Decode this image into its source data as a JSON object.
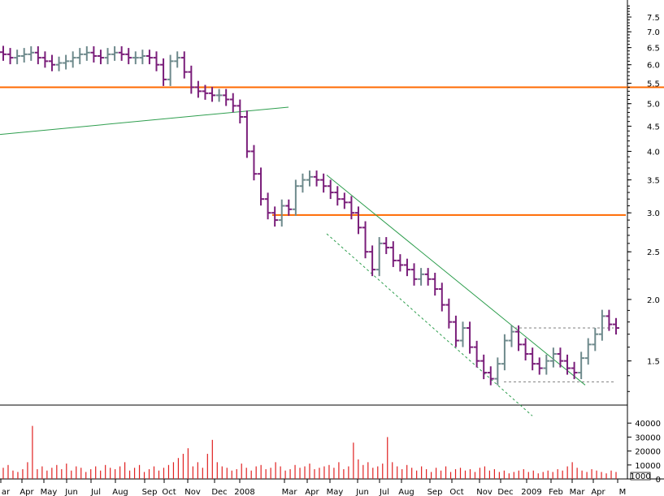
{
  "chart_data": [
    {
      "type": "ohlc",
      "y_scale": "log",
      "ylim": [
        1.22,
        8.0
      ],
      "y_ticks": [
        "7.5",
        "7.0",
        "6.5",
        "6.0",
        "5.5",
        "5.0",
        "4.5",
        "4.0",
        "3.5",
        "3.0",
        "2.5",
        "2.0",
        "1.5"
      ],
      "x_labels": [
        "ar",
        "Apr",
        "May",
        "Jun",
        "Jul",
        "Aug",
        "Sep",
        "Oct",
        "Nov",
        "Dec",
        "2008",
        "Mar",
        "Apr",
        "May",
        "Jun",
        "Jul",
        "Aug",
        "Sep",
        "Oct",
        "Nov",
        "Dec",
        "2009",
        "Feb",
        "Mar",
        "Apr",
        "M"
      ],
      "up_color": "#6e8a8c",
      "down_color": "#7a1e7a",
      "closes": [
        6.3,
        6.2,
        6.25,
        6.3,
        6.35,
        6.2,
        6.1,
        6.0,
        6.05,
        6.1,
        6.2,
        6.3,
        6.35,
        6.25,
        6.2,
        6.3,
        6.35,
        6.3,
        6.2,
        6.2,
        6.25,
        6.2,
        6.0,
        5.6,
        6.1,
        6.2,
        5.8,
        5.4,
        5.3,
        5.25,
        5.2,
        5.2,
        5.1,
        4.95,
        4.7,
        4.0,
        3.6,
        3.2,
        3.0,
        2.9,
        3.1,
        3.05,
        3.4,
        3.5,
        3.55,
        3.5,
        3.4,
        3.3,
        3.2,
        3.15,
        3.0,
        2.8,
        2.5,
        2.3,
        2.6,
        2.55,
        2.4,
        2.35,
        2.3,
        2.2,
        2.25,
        2.2,
        2.1,
        1.95,
        1.8,
        1.65,
        1.75,
        1.6,
        1.5,
        1.42,
        1.38,
        1.48,
        1.65,
        1.72,
        1.62,
        1.55,
        1.48,
        1.45,
        1.5,
        1.55,
        1.5,
        1.45,
        1.42,
        1.52,
        1.62,
        1.7,
        1.85,
        1.78,
        1.75
      ],
      "lines": [
        {
          "kind": "horizontal",
          "y": 5.4,
          "x_from": 0,
          "x_to": 817,
          "color": "#ff6a00"
        },
        {
          "kind": "horizontal",
          "y": 2.97,
          "x_from": 335,
          "x_to": 770,
          "color": "#ff6a00"
        },
        {
          "kind": "trend",
          "from": [
            0,
            4.33
          ],
          "to": [
            355,
            4.92
          ],
          "color": "#2e9e4e"
        },
        {
          "kind": "trend",
          "from": [
            402,
            3.58
          ],
          "to": [
            720,
            1.34
          ],
          "color": "#2e9e4e"
        },
        {
          "kind": "trend",
          "from": [
            402,
            2.72
          ],
          "to": [
            655,
            1.16
          ],
          "color": "#2e9e4e",
          "dashed": true
        },
        {
          "kind": "horizontal",
          "y": 1.75,
          "x_from": 633,
          "x_to": 755,
          "color": "#7f7f7f",
          "dashed": true
        },
        {
          "kind": "horizontal",
          "y": 1.36,
          "x_from": 620,
          "x_to": 755,
          "color": "#7f7f7f",
          "dashed": true
        }
      ]
    },
    {
      "type": "bar",
      "ylim": [
        0,
        50000
      ],
      "y_ticks": [
        "40000",
        "30000",
        "20000",
        "10000",
        "0"
      ],
      "unit_badge": "1000",
      "color": "#e02020",
      "values": [
        8000,
        10000,
        6000,
        5000,
        7000,
        12000,
        38000,
        7000,
        9000,
        6000,
        8000,
        10000,
        7000,
        11000,
        6000,
        9000,
        8000,
        5000,
        7000,
        9000,
        6000,
        10000,
        8000,
        7000,
        9000,
        12000,
        6000,
        8000,
        10000,
        5000,
        7000,
        9000,
        6000,
        8000,
        10000,
        12000,
        15000,
        18000,
        22000,
        9000,
        12000,
        8000,
        18000,
        28000,
        12000,
        9000,
        8000,
        6000,
        7000,
        11000,
        8000,
        6000,
        9000,
        10000,
        7000,
        8000,
        12000,
        9000,
        6000,
        7000,
        10000,
        8000,
        9000,
        11000,
        7000,
        8000,
        9000,
        10000,
        8000,
        12000,
        7000,
        9000,
        26000,
        14000,
        10000,
        12000,
        8000,
        9000,
        11000,
        30000,
        12000,
        9000,
        7000,
        10000,
        8000,
        6000,
        9000,
        7000,
        5000,
        8000,
        6000,
        9000,
        5000,
        7000,
        8000,
        6000,
        7000,
        5000,
        8000,
        9000,
        6000,
        7000,
        5000,
        6000,
        4000,
        5000,
        6000,
        7000,
        5000,
        6000,
        4000,
        5000,
        6000,
        5000,
        7000,
        6000,
        9000,
        12000,
        8000,
        6000,
        5000,
        7000,
        6000,
        5000,
        4000,
        6000,
        5000
      ]
    }
  ]
}
